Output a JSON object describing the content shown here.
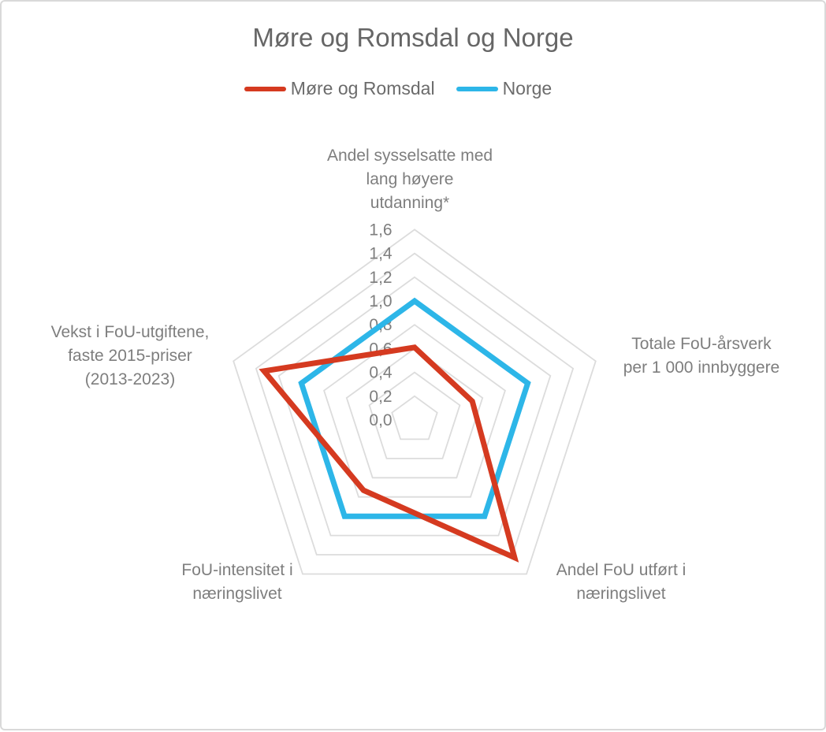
{
  "chart_data": {
    "type": "radar",
    "title": "Møre og Romsdal og Norge",
    "legend_position": "top",
    "grid": "on",
    "grid_color": "#dcdcdc",
    "axis_range": [
      0,
      1.6
    ],
    "tick_interval": 0.2,
    "grid_rings": [
      0.2,
      0.4,
      0.6,
      0.8,
      1.0,
      1.2,
      1.4,
      1.6
    ],
    "ticks": [
      {
        "value": 0.0,
        "label": "0,0"
      },
      {
        "value": 0.2,
        "label": "0,2"
      },
      {
        "value": 0.4,
        "label": "0,4"
      },
      {
        "value": 0.6,
        "label": "0,6"
      },
      {
        "value": 0.8,
        "label": "0,8"
      },
      {
        "value": 1.0,
        "label": "1,0"
      },
      {
        "value": 1.2,
        "label": "1,2"
      },
      {
        "value": 1.4,
        "label": "1,4"
      },
      {
        "value": 1.6,
        "label": "1,6"
      }
    ],
    "axes": [
      {
        "label": "Andel sysselsatte med lang høyere utdanning*",
        "lines": [
          "Andel sysselsatte med",
          "lang høyere",
          "utdanning*"
        ]
      },
      {
        "label": "Totale FoU-årsverk per 1 000 innbyggere",
        "lines": [
          "Totale FoU-årsverk",
          "per 1 000 innbyggere"
        ]
      },
      {
        "label": "Andel FoU utført i næringslivet",
        "lines": [
          "Andel FoU utført i",
          "næringslivet"
        ]
      },
      {
        "label": "FoU-intensitet i næringslivet",
        "lines": [
          "FoU-intensitet i",
          "næringslivet"
        ]
      },
      {
        "label": "Vekst i FoU-utgiftene, faste 2015-priser (2013-2023)",
        "lines": [
          "Vekst i FoU-utgiftene,",
          "faste 2015-priser",
          "(2013-2023)"
        ]
      }
    ],
    "series": [
      {
        "name": "Møre og Romsdal",
        "color": "#d53a20",
        "values": [
          0.61,
          0.51,
          1.43,
          0.73,
          1.33
        ]
      },
      {
        "name": "Norge",
        "color": "#2db6e8",
        "values": [
          1.0,
          1.0,
          1.0,
          1.0,
          1.0
        ]
      }
    ]
  },
  "colors": {
    "title_text": "#666666",
    "legend_text": "#6b6b6b",
    "axis_label_text": "#7e7e7e",
    "gridline": "#dcdcdc",
    "card_border": "#d9d9d9",
    "background": "#ffffff"
  }
}
